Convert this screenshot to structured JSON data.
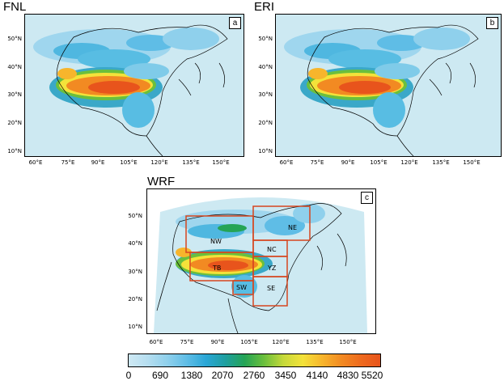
{
  "panels": [
    {
      "id": "a",
      "title": "FNL",
      "letter": "a"
    },
    {
      "id": "b",
      "title": "ERI",
      "letter": "b"
    },
    {
      "id": "c",
      "title": "WRF",
      "letter": "c"
    }
  ],
  "axes_top": {
    "lat_ticks": [
      "50°N",
      "40°N",
      "30°N",
      "20°N",
      "10°N"
    ],
    "lon_ticks": [
      "60°E",
      "75°E",
      "90°E",
      "105°E",
      "120°E",
      "135°E",
      "150°E"
    ]
  },
  "axes_wrf": {
    "lat_ticks": [
      "50°N",
      "40°N",
      "30°N",
      "20°N",
      "10°N"
    ],
    "lon_ticks": [
      "60°E",
      "75°E",
      "90°E",
      "105°E",
      "120°E",
      "135°E",
      "150°E"
    ]
  },
  "regions": [
    "NE",
    "NW",
    "NC",
    "TB",
    "YZ",
    "SW",
    "SE"
  ],
  "colorbar": {
    "labels": [
      "0",
      "690",
      "1380",
      "2070",
      "2760",
      "3450",
      "4140",
      "4830",
      "5520"
    ],
    "colors": [
      "#cfe9f4",
      "#b5def0",
      "#8fd0ec",
      "#5fbde6",
      "#2aa6d6",
      "#1f9fa0",
      "#25a455",
      "#6bbf3c",
      "#c6d93a",
      "#f4e23a",
      "#f7b52c",
      "#f28a22",
      "#ee6a1e",
      "#e8541c"
    ]
  }
}
